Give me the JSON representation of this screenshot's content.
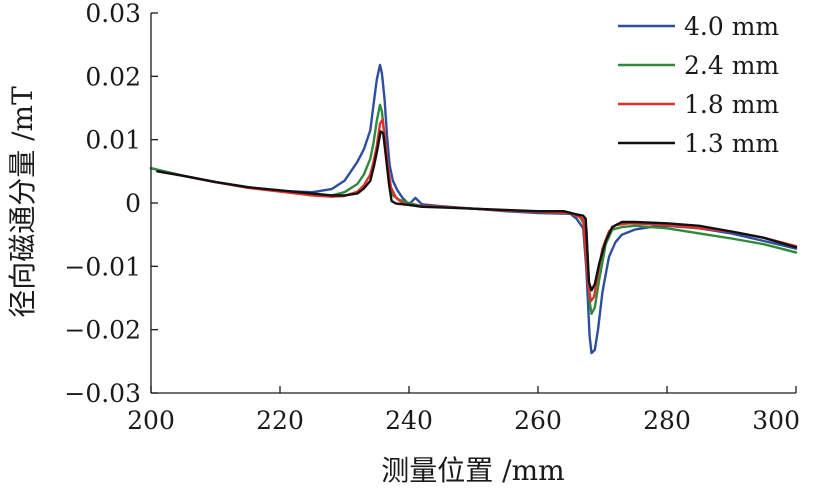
{
  "chart_data": {
    "type": "line",
    "title": "",
    "xlabel": "测量位置 /mm",
    "ylabel": "径向磁通分量 /mT",
    "xlim": [
      200,
      300
    ],
    "ylim": [
      -0.03,
      0.03
    ],
    "x_ticks": [
      "200",
      "220",
      "240",
      "260",
      "280",
      "300"
    ],
    "y_ticks": [
      "0.03",
      "0.02",
      "0.01",
      "0",
      "−0.01",
      "−0.02",
      "−0.03"
    ],
    "x_tick_values": [
      200,
      220,
      240,
      260,
      280,
      300
    ],
    "y_tick_values": [
      0.03,
      0.02,
      0.01,
      0,
      -0.01,
      -0.02,
      -0.03
    ],
    "grid": false,
    "legend_position": "top-right",
    "series": [
      {
        "name": "4.0 mm",
        "color": "#2e4fa0",
        "x": [
          200,
          202,
          205,
          210,
          215,
          220,
          225,
          228,
          230,
          232,
          233,
          234,
          234.5,
          235,
          235.5,
          235.8,
          236.2,
          236.6,
          237,
          237.5,
          238.2,
          239,
          240,
          241,
          242,
          245,
          250,
          255,
          260,
          265,
          266,
          267,
          267.5,
          268,
          268.3,
          268.8,
          269.3,
          270,
          271,
          272,
          273,
          275,
          278,
          280,
          285,
          290,
          295,
          300
        ],
        "y": [
          0.0055,
          0.005,
          0.0043,
          0.0033,
          0.0025,
          0.0019,
          0.0017,
          0.0022,
          0.0035,
          0.0065,
          0.0085,
          0.0115,
          0.0155,
          0.0195,
          0.0218,
          0.0205,
          0.0165,
          0.0105,
          0.006,
          0.0035,
          0.002,
          0.0008,
          -0.0002,
          0.0008,
          -0.0002,
          -0.0005,
          -0.0009,
          -0.0013,
          -0.0016,
          -0.0017,
          -0.0025,
          -0.004,
          -0.0105,
          -0.021,
          -0.0237,
          -0.0232,
          -0.02,
          -0.014,
          -0.0085,
          -0.0062,
          -0.005,
          -0.0042,
          -0.0037,
          -0.0036,
          -0.004,
          -0.0048,
          -0.006,
          -0.0072
        ]
      },
      {
        "name": "2.4 mm",
        "color": "#2f8a3c",
        "x": [
          200,
          202,
          205,
          210,
          215,
          220,
          225,
          228,
          230,
          232,
          233,
          234,
          234.5,
          235,
          235.5,
          235.8,
          236.2,
          236.6,
          237,
          237.5,
          238.5,
          240,
          242,
          245,
          250,
          255,
          260,
          265,
          266.5,
          267.5,
          268,
          268.3,
          268.8,
          269.5,
          270.5,
          271.5,
          273,
          275,
          280,
          285,
          290,
          295,
          300
        ],
        "y": [
          0.0055,
          0.005,
          0.0043,
          0.0033,
          0.0025,
          0.0019,
          0.0013,
          0.0012,
          0.0017,
          0.003,
          0.0045,
          0.007,
          0.0095,
          0.013,
          0.0155,
          0.0145,
          0.0105,
          0.006,
          0.003,
          0.0012,
          0.0005,
          0.0,
          -0.0005,
          -0.0006,
          -0.0009,
          -0.0012,
          -0.0014,
          -0.0016,
          -0.0022,
          -0.004,
          -0.0155,
          -0.0175,
          -0.0165,
          -0.012,
          -0.0065,
          -0.0042,
          -0.0038,
          -0.0036,
          -0.004,
          -0.0048,
          -0.0056,
          -0.0065,
          -0.0078
        ]
      },
      {
        "name": "1.8 mm",
        "color": "#e0312a",
        "x": [
          201,
          205,
          210,
          215,
          220,
          225,
          228,
          230,
          232,
          233,
          234,
          234.5,
          235,
          235.5,
          235.9,
          236.3,
          236.7,
          237.2,
          238,
          239,
          240,
          242,
          245,
          250,
          255,
          260,
          265,
          267,
          267.8,
          268.2,
          268.7,
          269.3,
          270,
          271,
          272,
          274,
          277,
          280,
          285,
          290,
          295,
          300
        ],
        "y": [
          0.005,
          0.0043,
          0.0033,
          0.0024,
          0.0018,
          0.0012,
          0.001,
          0.0011,
          0.0018,
          0.0028,
          0.0045,
          0.0065,
          0.009,
          0.0125,
          0.0132,
          0.01,
          0.006,
          0.0025,
          0.0008,
          0.0,
          -0.0003,
          -0.0005,
          -0.0006,
          -0.0009,
          -0.0012,
          -0.0014,
          -0.0016,
          -0.0025,
          -0.013,
          -0.0155,
          -0.0148,
          -0.011,
          -0.0072,
          -0.0045,
          -0.0035,
          -0.0032,
          -0.0033,
          -0.0035,
          -0.004,
          -0.0045,
          -0.0055,
          -0.0068
        ]
      },
      {
        "name": "1.3 mm",
        "color": "#111111",
        "x": [
          201,
          205,
          210,
          215,
          220,
          225,
          228,
          230,
          232,
          233,
          234,
          234.6,
          235.1,
          235.6,
          236,
          236.4,
          236.9,
          237.3,
          238,
          240,
          242,
          245,
          250,
          255,
          260,
          264,
          266,
          267,
          267.4,
          267.9,
          268.3,
          268.8,
          269.5,
          270.5,
          271.5,
          273,
          275,
          280,
          285,
          290,
          295,
          300
        ],
        "y": [
          0.005,
          0.0043,
          0.0033,
          0.0025,
          0.002,
          0.0015,
          0.0012,
          0.0012,
          0.0015,
          0.0023,
          0.0035,
          0.006,
          0.0085,
          0.0113,
          0.011,
          0.0075,
          0.003,
          0.0003,
          -0.0001,
          -0.0003,
          -0.0006,
          -0.0007,
          -0.0009,
          -0.0011,
          -0.0013,
          -0.0013,
          -0.0018,
          -0.002,
          -0.0025,
          -0.0125,
          -0.0138,
          -0.0128,
          -0.0095,
          -0.006,
          -0.0038,
          -0.003,
          -0.003,
          -0.0032,
          -0.0036,
          -0.0045,
          -0.0055,
          -0.007
        ]
      }
    ]
  }
}
